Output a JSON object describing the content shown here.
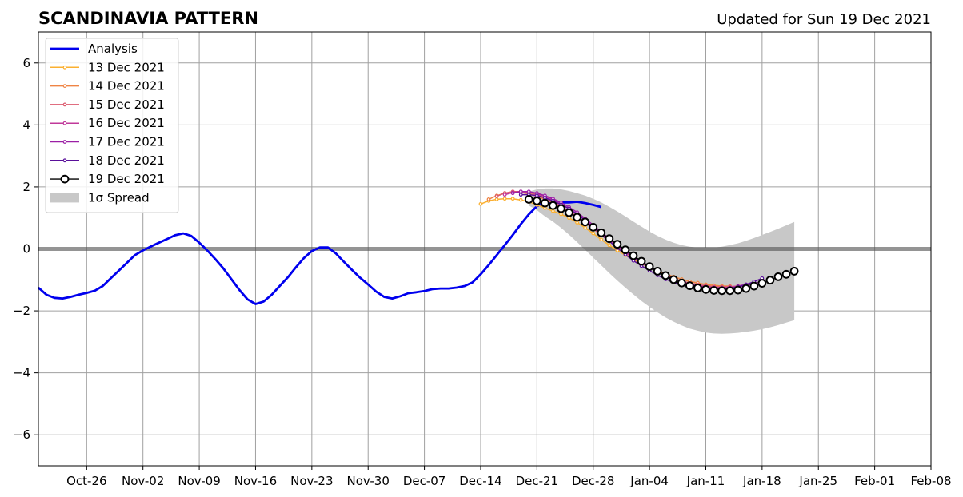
{
  "chart_data": {
    "type": "line",
    "title": "SCANDINAVIA PATTERN",
    "subtitle": "Updated for Sun 19 Dec 2021",
    "xlabel": "",
    "ylabel": "",
    "xlim": [
      "2021-10-20",
      "2022-02-08"
    ],
    "ylim": [
      -7,
      7
    ],
    "x_ticks": [
      "Oct-26",
      "Nov-02",
      "Nov-09",
      "Nov-16",
      "Nov-23",
      "Nov-30",
      "Dec-07",
      "Dec-14",
      "Dec-21",
      "Dec-28",
      "Jan-04",
      "Jan-11",
      "Jan-18",
      "Jan-25",
      "Feb-01",
      "Feb-08"
    ],
    "x_tick_dates": [
      "2021-10-26",
      "2021-11-02",
      "2021-11-09",
      "2021-11-16",
      "2021-11-23",
      "2021-11-30",
      "2021-12-07",
      "2021-12-14",
      "2021-12-21",
      "2021-12-28",
      "2022-01-04",
      "2022-01-11",
      "2022-01-18",
      "2022-01-25",
      "2022-02-01",
      "2022-02-08"
    ],
    "y_ticks": [
      "−6",
      "−4",
      "−2",
      "0",
      "2",
      "4",
      "6"
    ],
    "y_tick_values": [
      -6,
      -4,
      -2,
      0,
      2,
      4,
      6
    ],
    "grid": true,
    "zero_line": true,
    "legend_position": "upper-left",
    "analysis": {
      "name": "Analysis",
      "color": "#0000ee",
      "start": "2021-10-20",
      "values": [
        -1.25,
        -1.48,
        -1.58,
        -1.6,
        -1.55,
        -1.48,
        -1.42,
        -1.35,
        -1.2,
        -0.95,
        -0.7,
        -0.45,
        -0.2,
        -0.05,
        0.08,
        0.2,
        0.32,
        0.44,
        0.5,
        0.42,
        0.2,
        -0.05,
        -0.33,
        -0.63,
        -0.98,
        -1.33,
        -1.63,
        -1.78,
        -1.7,
        -1.48,
        -1.2,
        -0.92,
        -0.6,
        -0.3,
        -0.07,
        0.05,
        0.05,
        -0.15,
        -0.42,
        -0.68,
        -0.93,
        -1.15,
        -1.38,
        -1.55,
        -1.6,
        -1.53,
        -1.43,
        -1.4,
        -1.36,
        -1.3,
        -1.28,
        -1.28,
        -1.25,
        -1.2,
        -1.08,
        -0.82,
        -0.52,
        -0.2,
        0.12,
        0.45,
        0.8,
        1.12,
        1.38,
        1.5,
        1.52,
        1.5,
        1.5,
        1.52,
        1.48,
        1.42,
        1.35
      ]
    },
    "forecasts": [
      {
        "name": "13 Dec 2021",
        "color": "#fbb030",
        "start": "2021-12-14",
        "values": [
          1.45,
          1.55,
          1.6,
          1.62,
          1.62,
          1.58,
          1.52,
          1.42,
          1.32,
          1.22,
          1.12,
          1.0,
          0.85,
          0.68,
          0.5,
          0.3,
          0.12,
          -0.05,
          -0.2,
          -0.35,
          -0.48,
          -0.6,
          -0.7,
          -0.8,
          -0.9,
          -0.98,
          -1.05,
          -1.1,
          -1.15,
          -1.18,
          -1.2
        ]
      },
      {
        "name": "14 Dec 2021",
        "color": "#ef8445",
        "start": "2021-12-15",
        "values": [
          1.6,
          1.72,
          1.8,
          1.83,
          1.82,
          1.78,
          1.7,
          1.6,
          1.48,
          1.35,
          1.2,
          1.03,
          0.85,
          0.65,
          0.45,
          0.25,
          0.05,
          -0.12,
          -0.3,
          -0.45,
          -0.58,
          -0.7,
          -0.8,
          -0.9,
          -0.98,
          -1.05,
          -1.1,
          -1.15,
          -1.18,
          -1.2,
          -1.2
        ]
      },
      {
        "name": "15 Dec 2021",
        "color": "#dc5a6e",
        "start": "2021-12-16",
        "values": [
          1.7,
          1.8,
          1.85,
          1.85,
          1.82,
          1.75,
          1.65,
          1.52,
          1.38,
          1.22,
          1.05,
          0.85,
          0.65,
          0.45,
          0.25,
          0.05,
          -0.13,
          -0.3,
          -0.46,
          -0.6,
          -0.73,
          -0.85,
          -0.95,
          -1.04,
          -1.1,
          -1.15,
          -1.19,
          -1.22,
          -1.23,
          -1.22,
          -1.2,
          -1.15
        ]
      },
      {
        "name": "16 Dec 2021",
        "color": "#c0399a",
        "start": "2021-12-17",
        "values": [
          1.75,
          1.82,
          1.85,
          1.83,
          1.78,
          1.7,
          1.58,
          1.45,
          1.3,
          1.12,
          0.93,
          0.72,
          0.5,
          0.3,
          0.1,
          -0.1,
          -0.28,
          -0.45,
          -0.6,
          -0.74,
          -0.86,
          -0.97,
          -1.06,
          -1.13,
          -1.18,
          -1.22,
          -1.24,
          -1.25,
          -1.24,
          -1.2,
          -1.15,
          -1.08
        ]
      },
      {
        "name": "17 Dec 2021",
        "color": "#9b1fa5",
        "start": "2021-12-18",
        "values": [
          1.8,
          1.85,
          1.85,
          1.8,
          1.72,
          1.62,
          1.5,
          1.35,
          1.18,
          0.98,
          0.77,
          0.55,
          0.33,
          0.12,
          -0.08,
          -0.27,
          -0.44,
          -0.6,
          -0.75,
          -0.88,
          -0.99,
          -1.08,
          -1.15,
          -1.2,
          -1.24,
          -1.26,
          -1.27,
          -1.26,
          -1.23,
          -1.18,
          -1.12,
          -1.05
        ]
      },
      {
        "name": "18 Dec 2021",
        "color": "#5a109a",
        "start": "2021-12-19",
        "values": [
          1.75,
          1.75,
          1.72,
          1.65,
          1.55,
          1.43,
          1.3,
          1.12,
          0.92,
          0.7,
          0.47,
          0.25,
          0.03,
          -0.18,
          -0.38,
          -0.55,
          -0.7,
          -0.85,
          -0.98,
          -1.08,
          -1.17,
          -1.23,
          -1.27,
          -1.3,
          -1.31,
          -1.3,
          -1.27,
          -1.22,
          -1.15,
          -1.06,
          -0.95
        ]
      },
      {
        "name": "19 Dec 2021",
        "color": "#000000",
        "marker": "open-circle",
        "start": "2021-12-20",
        "values": [
          1.6,
          1.55,
          1.48,
          1.4,
          1.3,
          1.17,
          1.02,
          0.87,
          0.7,
          0.52,
          0.33,
          0.15,
          -0.03,
          -0.22,
          -0.4,
          -0.57,
          -0.72,
          -0.86,
          -0.99,
          -1.1,
          -1.19,
          -1.26,
          -1.31,
          -1.34,
          -1.35,
          -1.35,
          -1.33,
          -1.28,
          -1.2,
          -1.11,
          -1.01,
          -0.9,
          -0.82,
          -0.72
        ]
      }
    ],
    "spread": {
      "name": "1σ Spread",
      "color": "#c8c8c8",
      "start": "2021-12-20",
      "upper": [
        1.85,
        1.92,
        1.95,
        1.95,
        1.92,
        1.87,
        1.8,
        1.72,
        1.62,
        1.5,
        1.36,
        1.21,
        1.05,
        0.88,
        0.72,
        0.56,
        0.42,
        0.3,
        0.2,
        0.12,
        0.07,
        0.04,
        0.03,
        0.04,
        0.07,
        0.12,
        0.18,
        0.26,
        0.35,
        0.45,
        0.55,
        0.65,
        0.76,
        0.87
      ],
      "lower": [
        1.4,
        1.25,
        1.05,
        0.88,
        0.68,
        0.46,
        0.22,
        -0.03,
        -0.28,
        -0.53,
        -0.78,
        -1.02,
        -1.25,
        -1.47,
        -1.68,
        -1.87,
        -2.05,
        -2.21,
        -2.35,
        -2.47,
        -2.57,
        -2.64,
        -2.7,
        -2.73,
        -2.74,
        -2.73,
        -2.71,
        -2.68,
        -2.64,
        -2.59,
        -2.53,
        -2.46,
        -2.38,
        -2.3
      ]
    }
  }
}
